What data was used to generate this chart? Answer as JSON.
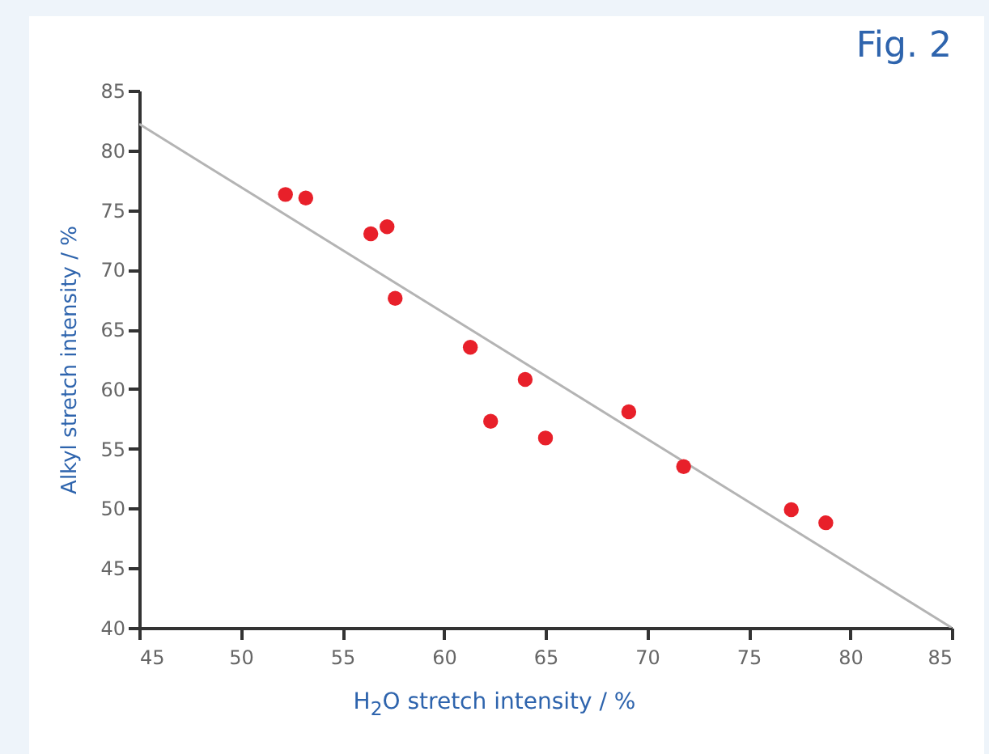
{
  "chart_data": {
    "type": "scatter",
    "title": "Fig. 2",
    "xlabel": "H$_{2}$O stretch intensity / %",
    "ylabel": "Alkyl stretch intensity / %",
    "xlim": [
      45,
      85
    ],
    "ylim": [
      40,
      85
    ],
    "xticks": [
      45,
      50,
      55,
      60,
      65,
      70,
      75,
      80,
      85
    ],
    "yticks": [
      40,
      45,
      50,
      55,
      60,
      65,
      70,
      75,
      80,
      85
    ],
    "grid": false,
    "series": [
      {
        "type": "line",
        "color": "#b4b4b4",
        "x": [
          45,
          85
        ],
        "values": [
          82.2,
          40
        ]
      },
      {
        "color": "#e8202a",
        "marker": "circle",
        "x": [
          52.2,
          53.2,
          56.4,
          57.2,
          57.6,
          61.3,
          62.3,
          64.0,
          65.0,
          69.1,
          71.8,
          77.1,
          78.8
        ],
        "values": [
          76.3,
          76.0,
          73.0,
          73.6,
          67.6,
          63.5,
          57.3,
          60.8,
          55.9,
          58.1,
          53.5,
          49.9,
          48.8
        ]
      }
    ]
  }
}
